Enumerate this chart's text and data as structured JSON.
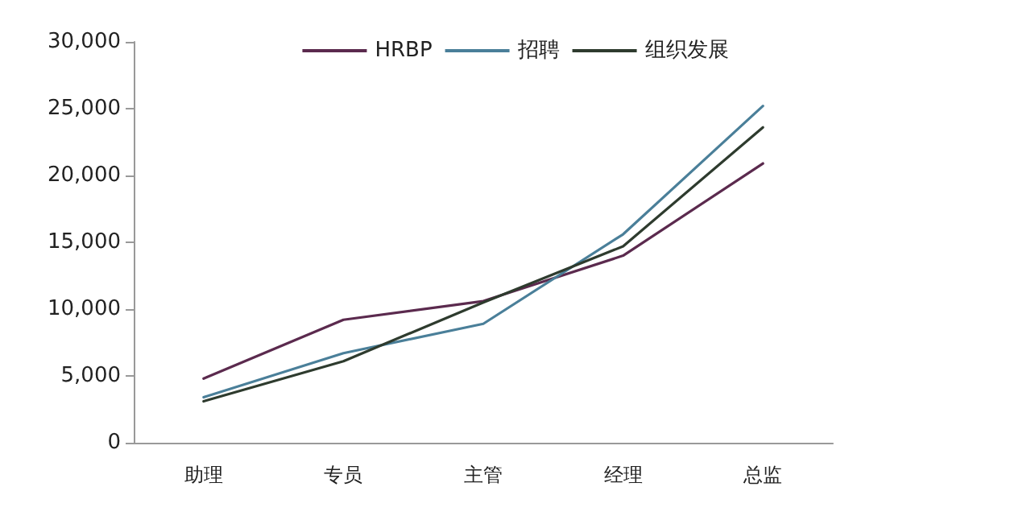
{
  "chart_data": {
    "type": "line",
    "categories": [
      "助理",
      "专员",
      "主管",
      "经理",
      "总监"
    ],
    "series": [
      {
        "name": "HRBP",
        "color": "#5b2a4e",
        "values": [
          4800,
          9200,
          10600,
          14000,
          20900
        ]
      },
      {
        "name": "招聘",
        "color": "#4a7f99",
        "values": [
          3400,
          6700,
          8900,
          15600,
          25200
        ]
      },
      {
        "name": "组织发展",
        "color": "#2e3b2e",
        "values": [
          3100,
          6100,
          10500,
          14700,
          23600
        ]
      }
    ],
    "ylim": [
      0,
      30000
    ],
    "yticks": [
      {
        "value": 0,
        "label": "0"
      },
      {
        "value": 5000,
        "label": "5,000"
      },
      {
        "value": 10000,
        "label": "10,000"
      },
      {
        "value": 15000,
        "label": "15,000"
      },
      {
        "value": 20000,
        "label": "20,000"
      },
      {
        "value": 25000,
        "label": "25,000"
      },
      {
        "value": 30000,
        "label": "30,000"
      }
    ],
    "grid": false,
    "legend": "top",
    "marker": "none",
    "line_style": "solid"
  }
}
